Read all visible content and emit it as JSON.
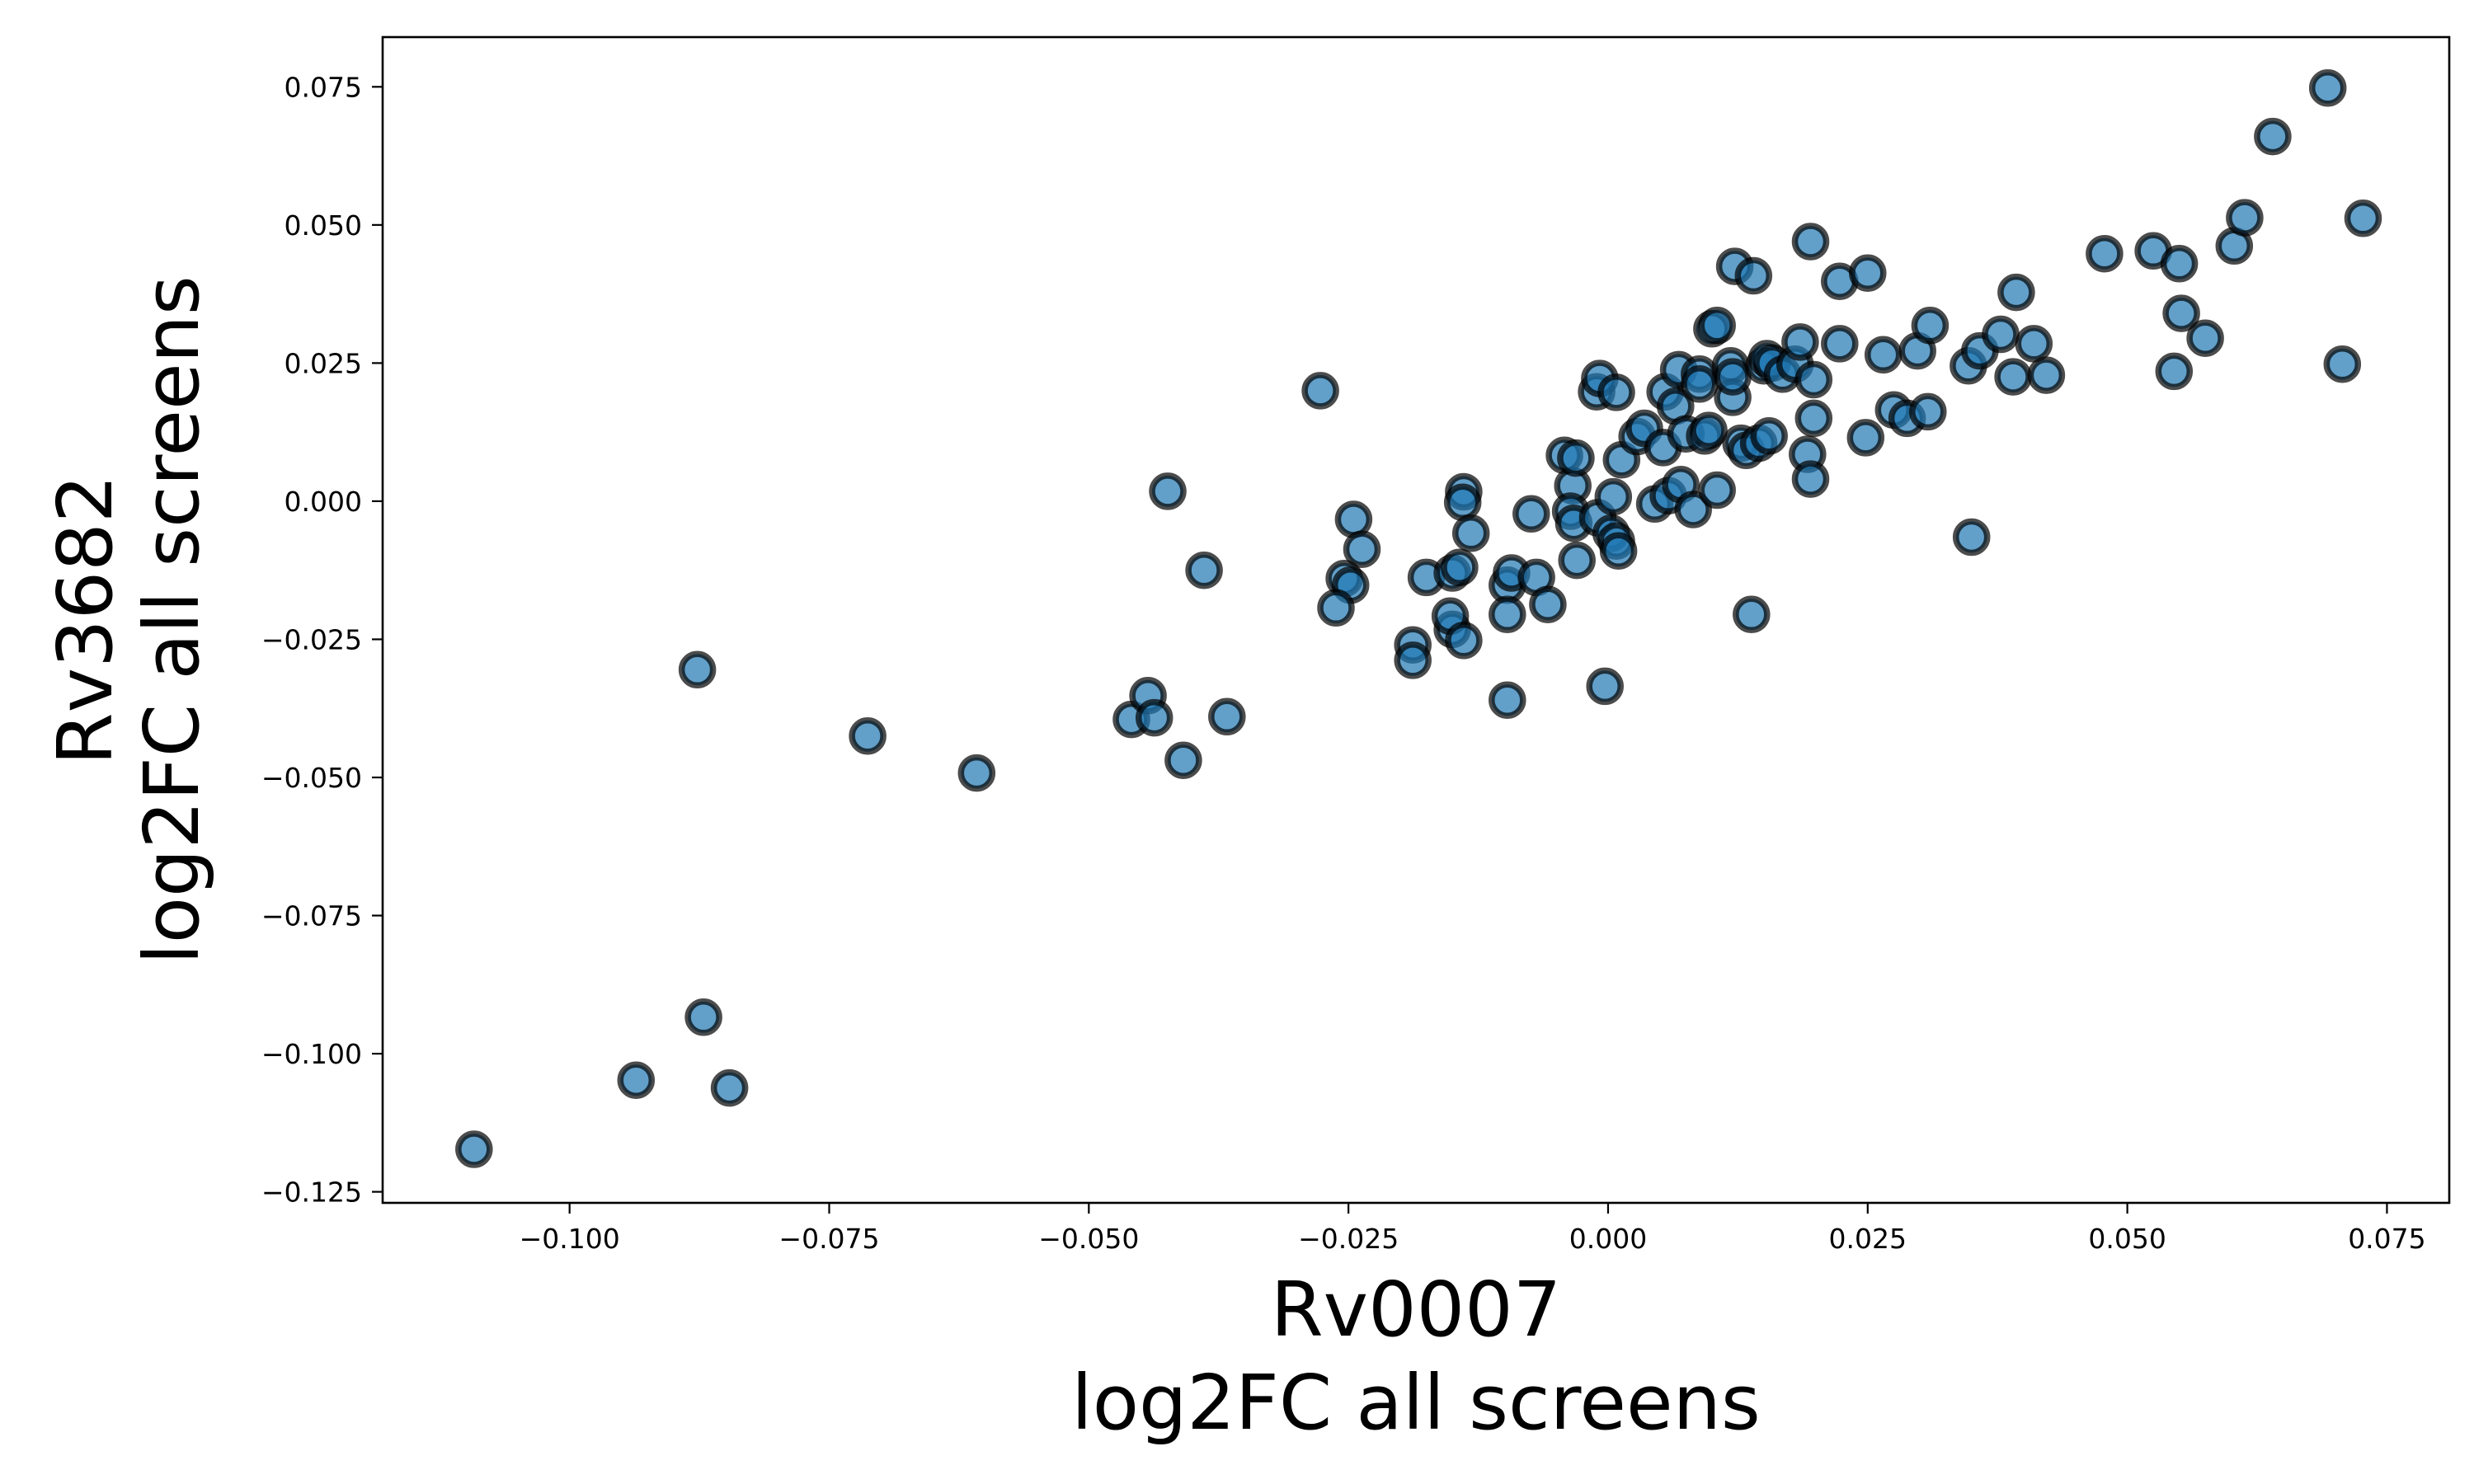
{
  "chart_data": {
    "type": "scatter",
    "title": "",
    "xlabel_lines": [
      "Rv0007",
      "log2FC all screens"
    ],
    "ylabel_lines": [
      "Rv3682",
      "log2FC all screens"
    ],
    "xlim": [
      -0.118,
      0.081
    ],
    "ylim": [
      -0.127,
      0.084
    ],
    "xticks": [
      -0.1,
      -0.075,
      -0.05,
      -0.025,
      0.0,
      0.025,
      0.05,
      0.075
    ],
    "yticks": [
      -0.125,
      -0.1,
      -0.075,
      -0.05,
      -0.025,
      0.0,
      0.025,
      0.05,
      0.075
    ],
    "xtick_labels": [
      "−0.100",
      "−0.075",
      "−0.050",
      "−0.025",
      "0.000",
      "0.025",
      "0.050",
      "0.075"
    ],
    "ytick_labels": [
      "−0.125",
      "−0.100",
      "−0.075",
      "−0.050",
      "−0.025",
      "0.000",
      "0.025",
      "0.050",
      "0.075"
    ],
    "grid": false,
    "marker_color": "#1f77b4",
    "marker_edge_color": "#000000",
    "points": [
      [
        -0.1092,
        -0.1173
      ],
      [
        -0.0936,
        -0.1048
      ],
      [
        -0.0871,
        -0.0934
      ],
      [
        -0.0846,
        -0.1062
      ],
      [
        -0.0877,
        -0.0305
      ],
      [
        -0.0713,
        -0.0425
      ],
      [
        -0.0608,
        -0.0492
      ],
      [
        -0.0459,
        -0.0395
      ],
      [
        -0.0443,
        -0.0352
      ],
      [
        -0.0437,
        -0.0392
      ],
      [
        -0.0409,
        -0.0469
      ],
      [
        -0.0424,
        0.0018
      ],
      [
        -0.0389,
        -0.0125
      ],
      [
        -0.0367,
        -0.039
      ],
      [
        -0.0277,
        0.02
      ],
      [
        -0.0245,
        -0.0033
      ],
      [
        -0.0237,
        -0.0087
      ],
      [
        -0.0254,
        -0.014
      ],
      [
        -0.0248,
        -0.0152
      ],
      [
        -0.0262,
        -0.0193
      ],
      [
        -0.0188,
        -0.026
      ],
      [
        -0.0188,
        -0.0288
      ],
      [
        -0.0175,
        -0.0138
      ],
      [
        -0.015,
        -0.0232
      ],
      [
        -0.0152,
        -0.0208
      ],
      [
        -0.0139,
        -0.0252
      ],
      [
        -0.015,
        -0.013
      ],
      [
        -0.0143,
        -0.012
      ],
      [
        -0.0139,
        0.0017
      ],
      [
        -0.014,
        -0.0002
      ],
      [
        -0.0132,
        -0.0058
      ],
      [
        -0.0097,
        -0.0152
      ],
      [
        -0.0093,
        -0.013
      ],
      [
        -0.0097,
        -0.0205
      ],
      [
        -0.0097,
        -0.036
      ],
      [
        -0.0074,
        -0.0023
      ],
      [
        -0.0069,
        -0.0138
      ],
      [
        -0.0058,
        -0.0187
      ],
      [
        -0.0042,
        0.0083
      ],
      [
        -0.0034,
        0.0028
      ],
      [
        -0.0031,
        0.0078
      ],
      [
        -0.0036,
        -0.0018
      ],
      [
        -0.0033,
        -0.004
      ],
      [
        -0.003,
        -0.0107
      ],
      [
        -0.0011,
        0.0198
      ],
      [
        -0.0008,
        0.0222
      ],
      [
        0.0008,
        0.0197
      ],
      [
        -0.001,
        -0.003
      ],
      [
        0.0003,
        -0.0058
      ],
      [
        0.0008,
        -0.0072
      ],
      [
        0.001,
        -0.009
      ],
      [
        0.0005,
        0.0008
      ],
      [
        0.0013,
        0.0075
      ],
      [
        -0.0003,
        -0.0335
      ],
      [
        0.0028,
        0.0117
      ],
      [
        0.0035,
        0.0132
      ],
      [
        0.0045,
        -0.0005
      ],
      [
        0.0053,
        0.0097
      ],
      [
        0.0055,
        0.0198
      ],
      [
        0.0058,
        0.001
      ],
      [
        0.0065,
        0.0172
      ],
      [
        0.0068,
        0.0238
      ],
      [
        0.007,
        0.003
      ],
      [
        0.0075,
        0.0122
      ],
      [
        0.0082,
        -0.0015
      ],
      [
        0.0088,
        0.023
      ],
      [
        0.0088,
        0.0212
      ],
      [
        0.0093,
        0.0118
      ],
      [
        0.0097,
        0.0128
      ],
      [
        0.01,
        0.0312
      ],
      [
        0.0105,
        0.0318
      ],
      [
        0.0105,
        0.002
      ],
      [
        0.0118,
        0.0245
      ],
      [
        0.012,
        0.0188
      ],
      [
        0.012,
        0.0225
      ],
      [
        0.0122,
        0.0425
      ],
      [
        0.0128,
        0.0105
      ],
      [
        0.0133,
        0.0092
      ],
      [
        0.0138,
        -0.0205
      ],
      [
        0.014,
        0.0408
      ],
      [
        0.0145,
        0.0105
      ],
      [
        0.015,
        0.0245
      ],
      [
        0.0155,
        0.0118
      ],
      [
        0.0153,
        0.0258
      ],
      [
        0.0158,
        0.025
      ],
      [
        0.0168,
        0.023
      ],
      [
        0.018,
        0.0248
      ],
      [
        0.0185,
        0.0288
      ],
      [
        0.0192,
        0.0085
      ],
      [
        0.0195,
        0.047
      ],
      [
        0.0195,
        0.004
      ],
      [
        0.0198,
        0.015
      ],
      [
        0.0198,
        0.022
      ],
      [
        0.0223,
        0.0398
      ],
      [
        0.0223,
        0.0285
      ],
      [
        0.0248,
        0.0115
      ],
      [
        0.025,
        0.0413
      ],
      [
        0.0265,
        0.0265
      ],
      [
        0.0275,
        0.0165
      ],
      [
        0.0288,
        0.015
      ],
      [
        0.0298,
        0.0272
      ],
      [
        0.0308,
        0.0162
      ],
      [
        0.031,
        0.0318
      ],
      [
        0.0347,
        0.0245
      ],
      [
        0.035,
        -0.0065
      ],
      [
        0.0358,
        0.0272
      ],
      [
        0.0378,
        0.0302
      ],
      [
        0.039,
        0.0225
      ],
      [
        0.0393,
        0.0378
      ],
      [
        0.041,
        0.0285
      ],
      [
        0.0422,
        0.0228
      ],
      [
        0.0478,
        0.0448
      ],
      [
        0.0525,
        0.0453
      ],
      [
        0.0545,
        0.0235
      ],
      [
        0.055,
        0.043
      ],
      [
        0.0552,
        0.034
      ],
      [
        0.0575,
        0.0295
      ],
      [
        0.0603,
        0.0462
      ],
      [
        0.0613,
        0.0513
      ],
      [
        0.064,
        0.066
      ],
      [
        0.0693,
        0.0748
      ],
      [
        0.0707,
        0.0248
      ],
      [
        0.0727,
        0.0512
      ]
    ]
  }
}
